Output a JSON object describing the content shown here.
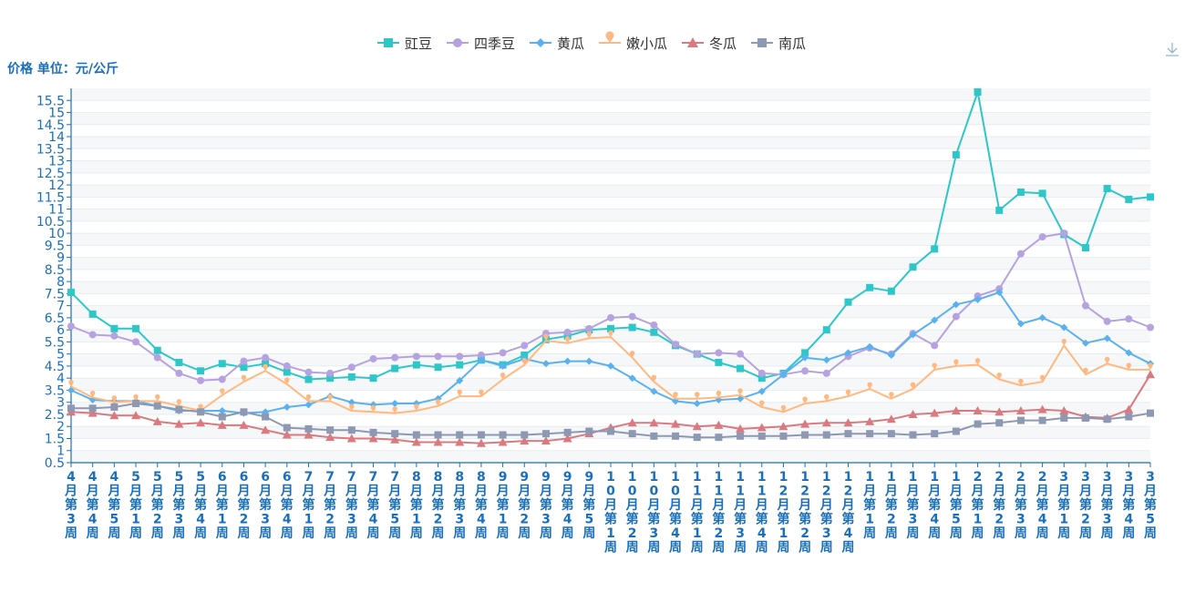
{
  "chart_data": {
    "type": "line",
    "y_unit_label": "价格 单位：元/公斤",
    "ylim": [
      0.5,
      16
    ],
    "y_ticks": [
      0.5,
      1,
      1.5,
      2,
      2.5,
      3,
      3.5,
      4,
      4.5,
      5,
      5.5,
      6,
      6.5,
      7,
      7.5,
      8,
      8.5,
      9,
      9.5,
      10,
      10.5,
      11,
      11.5,
      12,
      12.5,
      13,
      13.5,
      14,
      14.5,
      15,
      15.5
    ],
    "grid": true,
    "legend_position": "top-center",
    "categories": [
      "4月第3周",
      "4月第4周",
      "4月第5周",
      "5月第1周",
      "5月第2周",
      "5月第3周",
      "5月第4周",
      "6月第1周",
      "6月第2周",
      "6月第3周",
      "6月第4周",
      "7月第1周",
      "7月第2周",
      "7月第3周",
      "7月第4周",
      "7月第5周",
      "8月第1周",
      "8月第2周",
      "8月第3周",
      "8月第4周",
      "9月第1周",
      "9月第2周",
      "9月第3周",
      "9月第4周",
      "9月第5周",
      "10月第1周",
      "10月第2周",
      "10月第3周",
      "10月第4周",
      "11月第1周",
      "11月第2周",
      "11月第3周",
      "11月第4周",
      "12月第1周",
      "12月第2周",
      "12月第3周",
      "12月第4周",
      "1月第1周",
      "1月第2周",
      "1月第3周",
      "1月第4周",
      "1月第5周",
      "2月第1周",
      "2月第2周",
      "2月第3周",
      "2月第4周",
      "3月第1周",
      "3月第2周",
      "3月第3周",
      "3月第4周",
      "3月第5周"
    ],
    "series": [
      {
        "name": "豇豆",
        "color": "#2ec7c9",
        "marker": "square",
        "values": [
          7.55,
          6.65,
          6.05,
          6.05,
          5.15,
          4.65,
          4.3,
          4.6,
          4.45,
          4.6,
          4.25,
          3.95,
          4.0,
          4.05,
          4.0,
          4.4,
          4.55,
          4.45,
          4.55,
          4.75,
          4.55,
          4.95,
          5.6,
          5.75,
          6.0,
          6.05,
          6.1,
          5.9,
          5.35,
          5.0,
          4.65,
          4.4,
          4.0,
          4.2,
          5.05,
          6.0,
          7.15,
          7.75,
          7.6,
          8.6,
          9.35,
          13.25,
          15.85,
          10.95,
          11.7,
          11.65,
          9.95,
          9.4,
          11.85,
          11.4,
          11.5
        ]
      },
      {
        "name": "四季豆",
        "color": "#b6a2de",
        "marker": "circle",
        "values": [
          6.15,
          5.8,
          5.75,
          5.5,
          4.85,
          4.2,
          3.9,
          3.95,
          4.7,
          4.85,
          4.5,
          4.25,
          4.2,
          4.45,
          4.8,
          4.85,
          4.9,
          4.9,
          4.9,
          4.95,
          5.05,
          5.35,
          5.85,
          5.9,
          6.05,
          6.5,
          6.55,
          6.2,
          5.4,
          5.0,
          5.05,
          5.0,
          4.2,
          4.15,
          4.3,
          4.2,
          4.9,
          5.25,
          5.0,
          5.85,
          5.35,
          6.55,
          7.4,
          7.7,
          9.15,
          9.85,
          10.0,
          7.0,
          6.35,
          6.45,
          6.1
        ]
      },
      {
        "name": "黄瓜",
        "color": "#5ab1ef",
        "marker": "diamond",
        "values": [
          3.5,
          3.1,
          3.05,
          3.05,
          2.85,
          2.65,
          2.65,
          2.65,
          2.55,
          2.6,
          2.8,
          2.9,
          3.25,
          3.0,
          2.9,
          2.95,
          2.95,
          3.15,
          3.9,
          4.75,
          4.5,
          4.8,
          4.6,
          4.7,
          4.7,
          4.5,
          4.0,
          3.45,
          3.05,
          2.95,
          3.1,
          3.15,
          3.45,
          4.15,
          4.85,
          4.75,
          5.05,
          5.3,
          4.95,
          5.8,
          6.4,
          7.05,
          7.25,
          7.55,
          6.25,
          6.5,
          6.1,
          5.45,
          5.65,
          5.05,
          4.6
        ]
      },
      {
        "name": "嫩小瓜",
        "color": "#ffb980",
        "marker": "pin",
        "values": [
          3.65,
          3.2,
          3.0,
          3.05,
          3.05,
          2.85,
          2.65,
          3.3,
          3.85,
          4.3,
          3.75,
          3.05,
          3.05,
          2.65,
          2.6,
          2.55,
          2.65,
          2.85,
          3.25,
          3.25,
          3.95,
          4.55,
          5.55,
          5.45,
          5.65,
          5.7,
          4.85,
          3.85,
          3.15,
          3.15,
          3.2,
          3.3,
          2.8,
          2.6,
          2.95,
          3.05,
          3.25,
          3.55,
          3.15,
          3.55,
          4.35,
          4.5,
          4.55,
          3.95,
          3.7,
          3.85,
          5.35,
          4.15,
          4.6,
          4.35,
          4.35
        ]
      },
      {
        "name": "冬瓜",
        "color": "#d87a80",
        "marker": "triangle",
        "values": [
          2.6,
          2.55,
          2.45,
          2.45,
          2.2,
          2.1,
          2.15,
          2.05,
          2.05,
          1.85,
          1.65,
          1.65,
          1.55,
          1.5,
          1.5,
          1.45,
          1.35,
          1.35,
          1.35,
          1.3,
          1.35,
          1.4,
          1.4,
          1.5,
          1.7,
          1.95,
          2.15,
          2.15,
          2.1,
          2.0,
          2.05,
          1.9,
          1.95,
          2.0,
          2.1,
          2.15,
          2.15,
          2.2,
          2.3,
          2.5,
          2.55,
          2.65,
          2.65,
          2.6,
          2.65,
          2.7,
          2.65,
          2.4,
          2.35,
          2.7,
          4.15
        ]
      },
      {
        "name": "南瓜",
        "color": "#8d98b3",
        "marker": "square",
        "values": [
          2.75,
          2.75,
          2.8,
          2.95,
          2.85,
          2.7,
          2.6,
          2.4,
          2.6,
          2.4,
          1.95,
          1.9,
          1.85,
          1.85,
          1.75,
          1.7,
          1.65,
          1.65,
          1.65,
          1.65,
          1.65,
          1.65,
          1.7,
          1.75,
          1.8,
          1.8,
          1.7,
          1.6,
          1.6,
          1.55,
          1.55,
          1.6,
          1.6,
          1.6,
          1.65,
          1.65,
          1.7,
          1.7,
          1.7,
          1.65,
          1.7,
          1.8,
          2.1,
          2.15,
          2.25,
          2.25,
          2.35,
          2.35,
          2.3,
          2.4,
          2.55
        ]
      }
    ]
  }
}
